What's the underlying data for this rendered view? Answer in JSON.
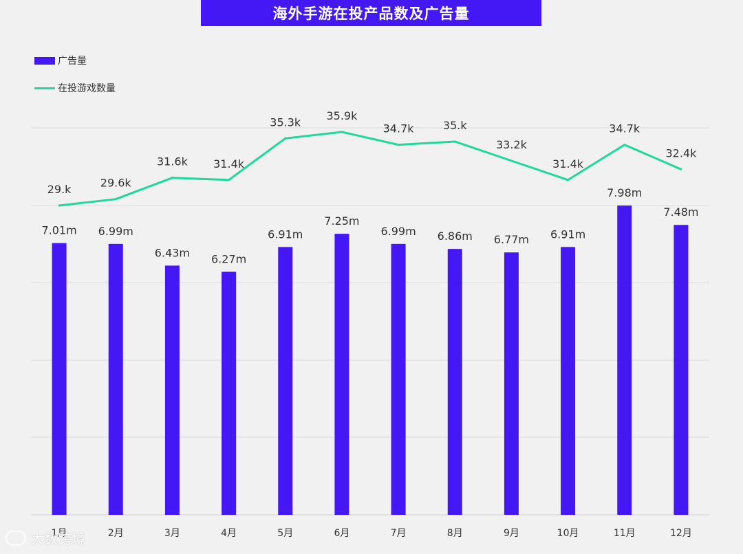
{
  "title": "海外手游在投产品数及广告量",
  "colors": {
    "bar": "#4417f5",
    "line": "#1ed99a",
    "title_bg": "#4417f5",
    "grid": "#dcdcdc"
  },
  "watermark": {
    "text": "大数跨境",
    "icon": "brand-logo-icon"
  },
  "chart_data": {
    "type": "bar",
    "title": "海外手游在投产品数及广告量",
    "categories": [
      "1月",
      "2月",
      "3月",
      "4月",
      "5月",
      "6月",
      "7月",
      "8月",
      "9月",
      "10月",
      "11月",
      "12月"
    ],
    "legend_position": "top-left",
    "grid": true,
    "series": [
      {
        "name": "广告量",
        "type": "bar",
        "values": [
          7.01,
          6.99,
          6.43,
          6.27,
          6.91,
          7.25,
          6.99,
          6.86,
          6.77,
          6.91,
          7.98,
          7.48
        ],
        "labels": [
          "7.01m",
          "6.99m",
          "6.43m",
          "6.27m",
          "6.91m",
          "7.25m",
          "6.99m",
          "6.86m",
          "6.77m",
          "6.91m",
          "7.98m",
          "7.48m"
        ],
        "unit": "m",
        "ylim": [
          0,
          8
        ]
      },
      {
        "name": "在投游戏数量",
        "type": "line",
        "values": [
          29.0,
          29.6,
          31.6,
          31.4,
          35.3,
          35.9,
          34.7,
          35.0,
          33.2,
          31.4,
          34.7,
          32.4
        ],
        "labels": [
          "29.k",
          "29.6k",
          "31.6k",
          "31.4k",
          "35.3k",
          "35.9k",
          "34.7k",
          "35.k",
          "33.2k",
          "31.4k",
          "34.7k",
          "32.4k"
        ],
        "unit": "k"
      }
    ]
  }
}
